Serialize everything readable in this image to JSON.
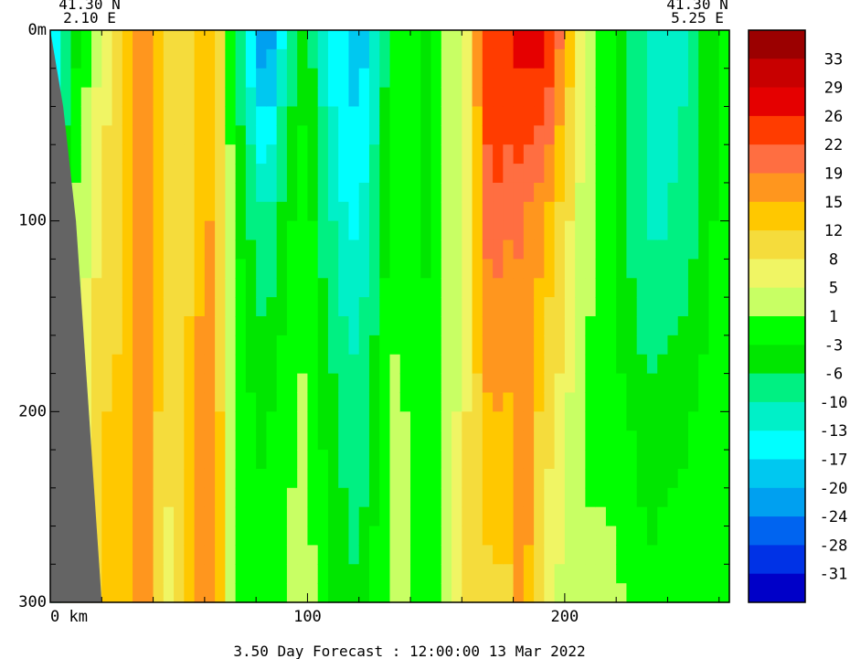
{
  "chart_data": {
    "type": "heatmap",
    "title": "",
    "subtitle": "3.50 Day Forecast : 12:00:00  13 Mar 2022",
    "corner_left": {
      "lat": "41.30 N",
      "lon": "2.10 E"
    },
    "corner_right": {
      "lat": "41.30 N",
      "lon": "5.25 E"
    },
    "xlabel": "",
    "ylabel": "",
    "xlim": [
      0,
      264
    ],
    "ylim": [
      0,
      300
    ],
    "x_ticks": [
      {
        "value": 0,
        "label": "0 km"
      },
      {
        "value": 100,
        "label": "100"
      },
      {
        "value": 200,
        "label": "200"
      }
    ],
    "y_ticks": [
      {
        "value": 0,
        "label": "0m"
      },
      {
        "value": 100,
        "label": "100"
      },
      {
        "value": 200,
        "label": "200"
      },
      {
        "value": 300,
        "label": "300"
      }
    ],
    "y_inverted": true,
    "colorbar": {
      "labels": [
        "33",
        "29",
        "26",
        "22",
        "19",
        "15",
        "12",
        "8",
        "5",
        "1",
        "-3",
        "-6",
        "-10",
        "-13",
        "-17",
        "-20",
        "-24",
        "-28",
        "-31"
      ],
      "colors": [
        "#9b0000",
        "#c80000",
        "#e50000",
        "#ff3c00",
        "#ff6e41",
        "#ff961e",
        "#ffc800",
        "#f5dc3c",
        "#f0f564",
        "#c8ff64",
        "#00ff00",
        "#00e600",
        "#00f082",
        "#00f0c8",
        "#00ffff",
        "#00c8f0",
        "#00a0f0",
        "#0064f0",
        "#0032e6",
        "#0000c8"
      ]
    },
    "land_color": "#646464",
    "columns": [
      {
        "x": 0,
        "values": [
          -15,
          -15,
          -13,
          -12
        ]
      },
      {
        "x": 4,
        "values": [
          -13,
          -8,
          -5,
          -3
        ]
      },
      {
        "x": 8,
        "values": [
          -5,
          2,
          5,
          8
        ]
      },
      {
        "x": 12,
        "values": [
          -3,
          3,
          7,
          9
        ]
      },
      {
        "x": 16,
        "values": [
          2,
          5,
          8,
          10
        ]
      },
      {
        "x": 20,
        "values": [
          6,
          9,
          12,
          14
        ]
      },
      {
        "x": 24,
        "values": [
          7,
          10,
          12,
          14
        ]
      },
      {
        "x": 28,
        "values": [
          10,
          12,
          13,
          14
        ]
      },
      {
        "x": 32,
        "values": [
          14,
          15,
          16,
          16
        ]
      },
      {
        "x": 36,
        "values": [
          16,
          17,
          17,
          17
        ]
      },
      {
        "x": 40,
        "values": [
          14,
          15,
          14,
          13
        ]
      },
      {
        "x": 44,
        "values": [
          12,
          11,
          10,
          9
        ]
      },
      {
        "x": 48,
        "values": [
          8,
          8,
          7,
          6
        ]
      },
      {
        "x": 52,
        "values": [
          10,
          10,
          11,
          10
        ]
      },
      {
        "x": 56,
        "values": [
          12,
          13,
          14,
          15
        ]
      },
      {
        "x": 60,
        "values": [
          14,
          16,
          17,
          18
        ]
      },
      {
        "x": 64,
        "values": [
          12,
          14,
          16,
          17
        ]
      },
      {
        "x": 68,
        "values": [
          5,
          6,
          8,
          8
        ]
      },
      {
        "x": 72,
        "values": [
          -6,
          -2,
          1,
          1
        ]
      },
      {
        "x": 76,
        "values": [
          -12,
          -5,
          -2,
          -1
        ]
      },
      {
        "x": 80,
        "values": [
          -20,
          -8,
          -3,
          -2
        ]
      },
      {
        "x": 84,
        "values": [
          -26,
          -10,
          -4,
          -2
        ]
      },
      {
        "x": 88,
        "values": [
          -18,
          -6,
          -2,
          0
        ]
      },
      {
        "x": 92,
        "values": [
          -10,
          -4,
          -1,
          2
        ]
      },
      {
        "x": 96,
        "values": [
          -6,
          -2,
          1,
          3
        ]
      },
      {
        "x": 100,
        "values": [
          -4,
          0,
          2,
          4
        ]
      },
      {
        "x": 104,
        "values": [
          -10,
          -6,
          -3,
          -1
        ]
      },
      {
        "x": 108,
        "values": [
          -14,
          -8,
          -4,
          -2
        ]
      },
      {
        "x": 112,
        "values": [
          -16,
          -12,
          -6,
          -4
        ]
      },
      {
        "x": 116,
        "values": [
          -18,
          -13,
          -8,
          -5
        ]
      },
      {
        "x": 120,
        "values": [
          -21,
          -14,
          -9,
          -6
        ]
      },
      {
        "x": 124,
        "values": [
          -15,
          -10,
          -6,
          -3
        ]
      },
      {
        "x": 128,
        "values": [
          -10,
          -6,
          -3,
          -1
        ]
      },
      {
        "x": 132,
        "values": [
          -4,
          -2,
          1,
          1
        ]
      },
      {
        "x": 136,
        "values": [
          2,
          1,
          2,
          3
        ]
      },
      {
        "x": 140,
        "values": [
          -2,
          -1,
          0,
          1
        ]
      },
      {
        "x": 144,
        "values": [
          -4,
          -4,
          -2,
          -1
        ]
      },
      {
        "x": 148,
        "values": [
          -3,
          -3,
          -2,
          -1
        ]
      },
      {
        "x": 152,
        "values": [
          0,
          0,
          1,
          2
        ]
      },
      {
        "x": 156,
        "values": [
          3,
          3,
          4,
          5
        ]
      },
      {
        "x": 160,
        "values": [
          5,
          4,
          6,
          7
        ]
      },
      {
        "x": 164,
        "values": [
          10,
          9,
          10,
          10
        ]
      },
      {
        "x": 168,
        "values": [
          22,
          18,
          13,
          10
        ]
      },
      {
        "x": 172,
        "values": [
          28,
          22,
          16,
          12
        ]
      },
      {
        "x": 176,
        "values": [
          24,
          20,
          14,
          10
        ]
      },
      {
        "x": 180,
        "values": [
          27,
          19,
          15,
          13
        ]
      },
      {
        "x": 184,
        "values": [
          29,
          20,
          18,
          17
        ]
      },
      {
        "x": 188,
        "values": [
          26,
          17,
          14,
          12
        ]
      },
      {
        "x": 192,
        "values": [
          30,
          16,
          10,
          6
        ]
      },
      {
        "x": 196,
        "values": [
          22,
          12,
          8,
          5
        ]
      },
      {
        "x": 200,
        "values": [
          17,
          10,
          6,
          4
        ]
      },
      {
        "x": 204,
        "values": [
          10,
          6,
          3,
          2
        ]
      },
      {
        "x": 208,
        "values": [
          5,
          3,
          1,
          1
        ]
      },
      {
        "x": 212,
        "values": [
          2,
          0,
          0,
          2
        ]
      },
      {
        "x": 216,
        "values": [
          0,
          -2,
          -1,
          3
        ]
      },
      {
        "x": 220,
        "values": [
          -2,
          -4,
          -2,
          2
        ]
      },
      {
        "x": 224,
        "values": [
          -4,
          -6,
          -3,
          1
        ]
      },
      {
        "x": 228,
        "values": [
          -8,
          -8,
          -4,
          -1
        ]
      },
      {
        "x": 232,
        "values": [
          -12,
          -10,
          -5,
          -2
        ]
      },
      {
        "x": 236,
        "values": [
          -13,
          -11,
          -5,
          -2
        ]
      },
      {
        "x": 240,
        "values": [
          -12,
          -10,
          -4,
          -1
        ]
      },
      {
        "x": 244,
        "values": [
          -12,
          -9,
          -4,
          -2
        ]
      },
      {
        "x": 248,
        "values": [
          -10,
          -8,
          -3,
          -2
        ]
      },
      {
        "x": 252,
        "values": [
          -8,
          -6,
          -3,
          -2
        ]
      },
      {
        "x": 256,
        "values": [
          -4,
          -3,
          -2,
          -1
        ]
      },
      {
        "x": 260,
        "values": [
          -3,
          -3,
          -2,
          0
        ]
      },
      {
        "x": 264,
        "values": [
          -3,
          -2,
          -1,
          0
        ]
      }
    ],
    "depth_levels": [
      0,
      100,
      200,
      300
    ],
    "bathymetry": [
      [
        0,
        0
      ],
      [
        5,
        40
      ],
      [
        10,
        100
      ],
      [
        15,
        200
      ],
      [
        20,
        300
      ]
    ]
  }
}
